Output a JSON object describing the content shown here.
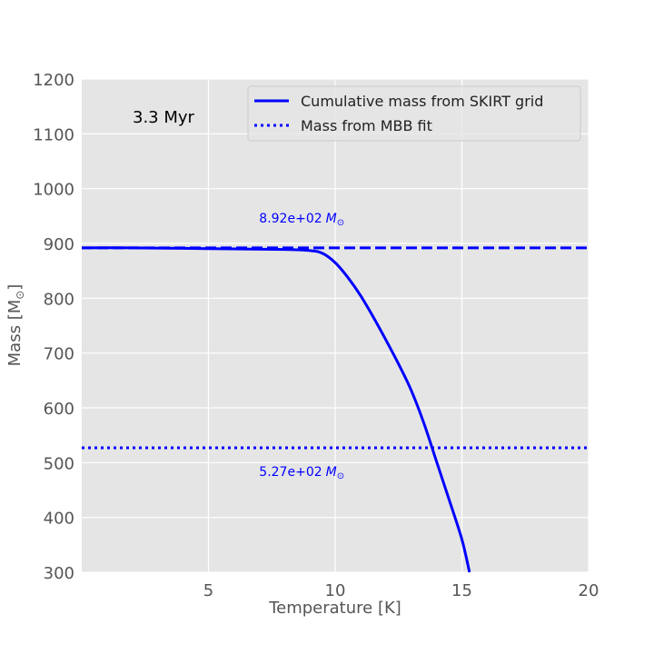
{
  "chart_data": {
    "type": "line",
    "xlabel": "Temperature [K]",
    "ylabel": "Mass [M",
    "ylabel_sub": "⊙",
    "ylabel_close": "]",
    "xlim": [
      0,
      20
    ],
    "ylim": [
      300,
      1200
    ],
    "xticks": [
      5,
      10,
      15,
      20
    ],
    "yticks": [
      300,
      400,
      500,
      600,
      700,
      800,
      900,
      1000,
      1100,
      1200
    ],
    "grid": true,
    "legend_position": "upper right",
    "annotation": "3.3 Myr",
    "series": [
      {
        "name": "Cumulative mass from SKIRT grid",
        "style": "solid",
        "color": "#0000ff",
        "x": [
          0,
          2,
          4,
          6,
          8,
          9,
          9.5,
          10,
          10.5,
          11,
          11.5,
          12,
          12.5,
          13,
          13.5,
          14,
          14.5,
          15,
          15.3
        ],
        "y": [
          892,
          892,
          891,
          890,
          889,
          887,
          882,
          865,
          838,
          805,
          766,
          724,
          680,
          632,
          572,
          502,
          432,
          360,
          300
        ]
      },
      {
        "name": "Mass from MBB fit",
        "style": "dotted",
        "color": "#0000ff",
        "x": [
          0,
          20
        ],
        "y": [
          527,
          527
        ]
      }
    ],
    "reference_lines": [
      {
        "style": "dashed",
        "color": "#0000ff",
        "y": 892,
        "label": "8.92e+02",
        "label_unit": "M",
        "label_sub": "⊙",
        "label_x": 7
      },
      {
        "style": "dotted",
        "color": "#0000ff",
        "y": 527,
        "label": "5.27e+02",
        "label_unit": "M",
        "label_sub": "⊙",
        "label_x": 7
      }
    ]
  },
  "colors": {
    "plot_bg": "#e5e5e5",
    "grid": "#ffffff",
    "line": "#0000ff"
  }
}
